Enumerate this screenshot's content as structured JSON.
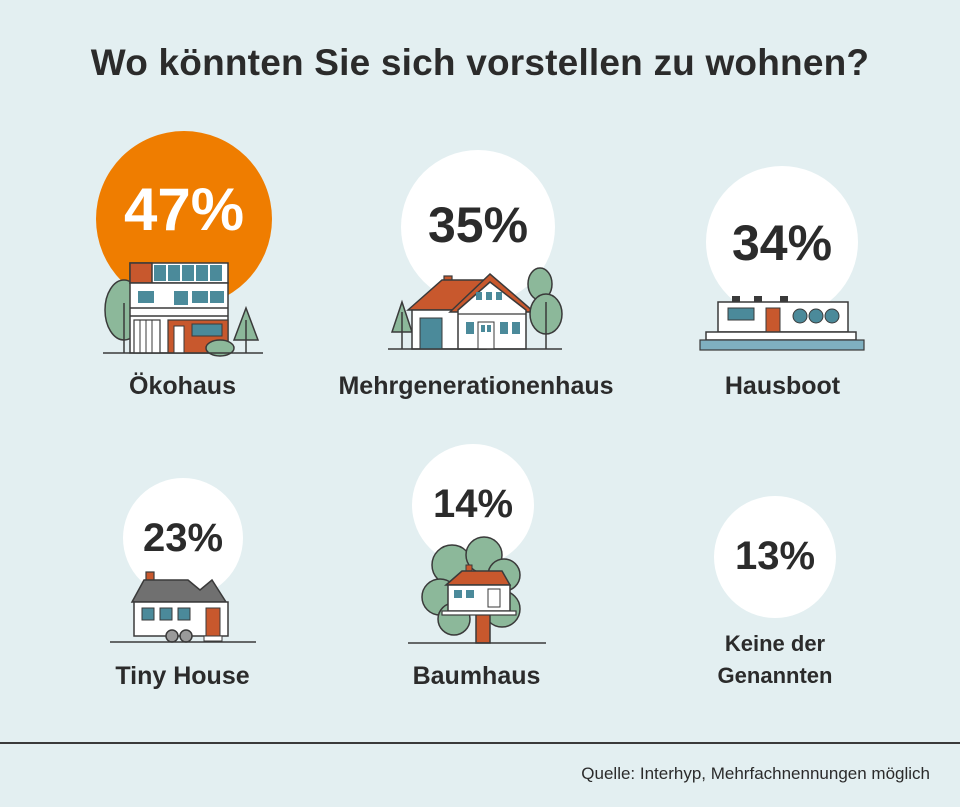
{
  "title": "Wo könnten Sie sich vorstellen zu wohnen?",
  "source": "Quelle: Interhyp, Mehrfachnennungen möglich",
  "colors": {
    "background": "#e3eff1",
    "highlight": "#ef7d00",
    "circle": "#ffffff",
    "text": "#2b2b2b",
    "roof": "#c8582d",
    "window": "#4b8a9a",
    "tree": "#8cb89a"
  },
  "chart_data": {
    "type": "bar",
    "title": "Wo könnten Sie sich vorstellen zu wohnen?",
    "categories": [
      "Ökohaus",
      "Mehrgenerationenhaus",
      "Hausboot",
      "Tiny House",
      "Baumhaus",
      "Keine der Genannten"
    ],
    "values": [
      47,
      35,
      34,
      23,
      14,
      13
    ],
    "value_labels": [
      "47%",
      "35%",
      "34%",
      "23%",
      "14%",
      "13%"
    ],
    "unit": "%",
    "highlighted": "Ökohaus",
    "icons": [
      "eco-house-icon",
      "multigenerational-house-icon",
      "houseboat-icon",
      "tiny-house-icon",
      "treehouse-icon",
      ""
    ]
  }
}
